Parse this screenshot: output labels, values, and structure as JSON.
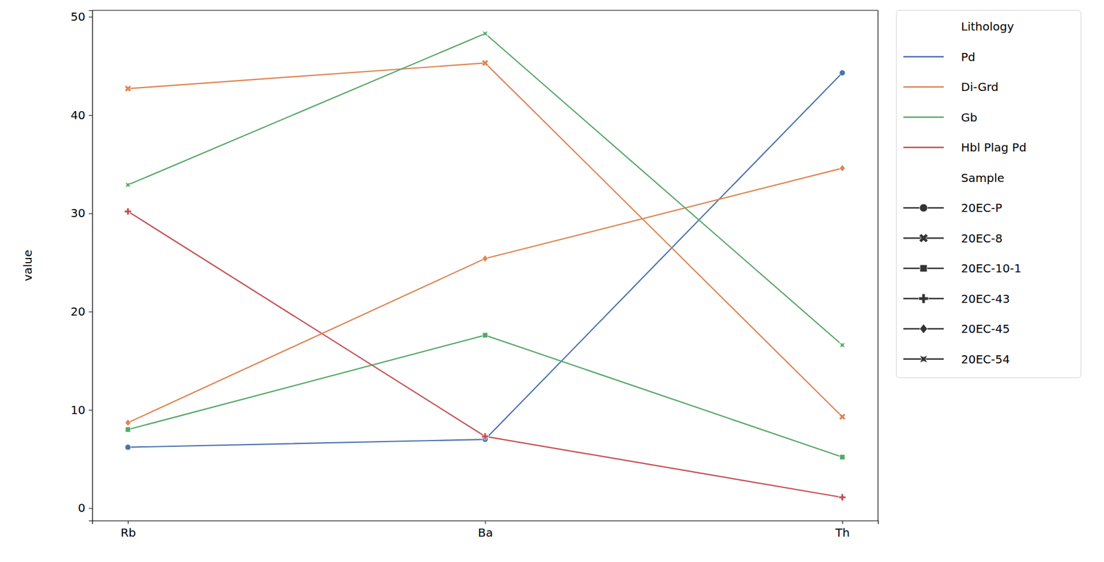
{
  "chart_data": {
    "type": "line",
    "y_label": "value",
    "categories": [
      "Rb",
      "Ba",
      "Th"
    ],
    "ylim": [
      -1.26,
      50.66
    ],
    "yticks": [
      0,
      10,
      20,
      30,
      40,
      50
    ],
    "hue_legend": {
      "title": "Lithology",
      "entries": [
        {
          "name": "Pd",
          "color": "#4c72b0"
        },
        {
          "name": "Di-Grd",
          "color": "#dd8452"
        },
        {
          "name": "Gb",
          "color": "#55a868"
        },
        {
          "name": "Hbl Plag Pd",
          "color": "#c44e52"
        }
      ]
    },
    "style_legend_title": "Sample",
    "series": [
      {
        "name": "20EC-P",
        "color": "#4c72b0",
        "marker": "circle",
        "values": [
          6.2,
          7.0,
          44.3
        ]
      },
      {
        "name": "20EC-8",
        "color": "#dd8452",
        "marker": "x",
        "values": [
          42.7,
          45.3,
          9.3
        ]
      },
      {
        "name": "20EC-10-1",
        "color": "#55a868",
        "marker": "square",
        "values": [
          8.0,
          17.6,
          5.2
        ]
      },
      {
        "name": "20EC-43",
        "color": "#c44e52",
        "marker": "plus",
        "values": [
          30.2,
          7.3,
          1.1
        ]
      },
      {
        "name": "20EC-45",
        "color": "#dd8452",
        "marker": "diamond",
        "values": [
          8.7,
          25.4,
          34.6
        ]
      },
      {
        "name": "20EC-54",
        "color": "#55a868",
        "marker": "star",
        "values": [
          32.9,
          48.3,
          16.6
        ]
      }
    ]
  }
}
